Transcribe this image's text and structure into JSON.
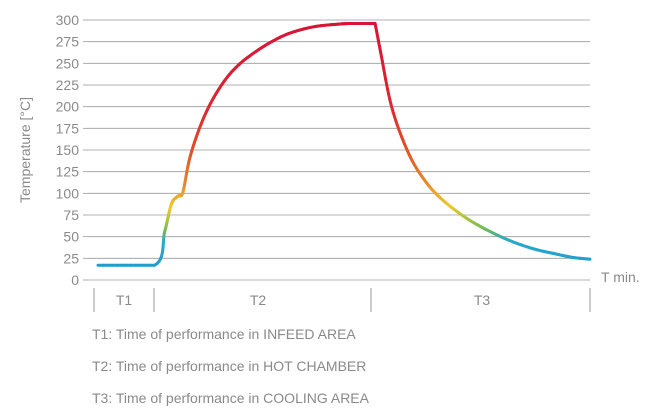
{
  "chart_data": {
    "type": "line",
    "ylabel": "Temperature [°C]",
    "xlabel": "T min.",
    "ylim": [
      0,
      300
    ],
    "yticks": [
      "0",
      "25",
      "50",
      "75",
      "100",
      "125",
      "150",
      "175",
      "200",
      "225",
      "250",
      "275",
      "300"
    ],
    "grid": true,
    "phases": [
      {
        "label": "T1",
        "from": 0.0,
        "to": 1.0
      },
      {
        "label": "T2",
        "from": 1.0,
        "to": 4.9
      },
      {
        "label": "T3",
        "from": 4.9,
        "to": 8.7
      }
    ],
    "series": [
      {
        "x": [
          0.0,
          1.0,
          1.18,
          1.3,
          1.42,
          1.5,
          1.62,
          1.8,
          2.0,
          2.25,
          2.5,
          2.8,
          3.1,
          3.4,
          3.8,
          4.2,
          4.5,
          4.9,
          5.0,
          5.2,
          5.5,
          5.8,
          6.1,
          6.5,
          6.9,
          7.3,
          7.7,
          8.1,
          8.4,
          8.7
        ],
        "values": [
          17,
          17,
          56,
          88,
          97,
          101,
          140,
          176,
          205,
          231,
          249,
          264,
          276,
          285,
          292,
          295,
          296,
          296,
          262,
          198,
          145,
          113,
          92,
          72,
          57,
          45,
          36,
          30,
          26,
          24
        ],
        "color_scale": "temperature gradient (blue low → green → yellow → orange → red high)"
      }
    ],
    "notes": [
      "T1: Time of performance in INFEED AREA",
      "T2: Time of performance in HOT CHAMBER",
      "T3: Time of performance in COOLING AREA"
    ]
  }
}
